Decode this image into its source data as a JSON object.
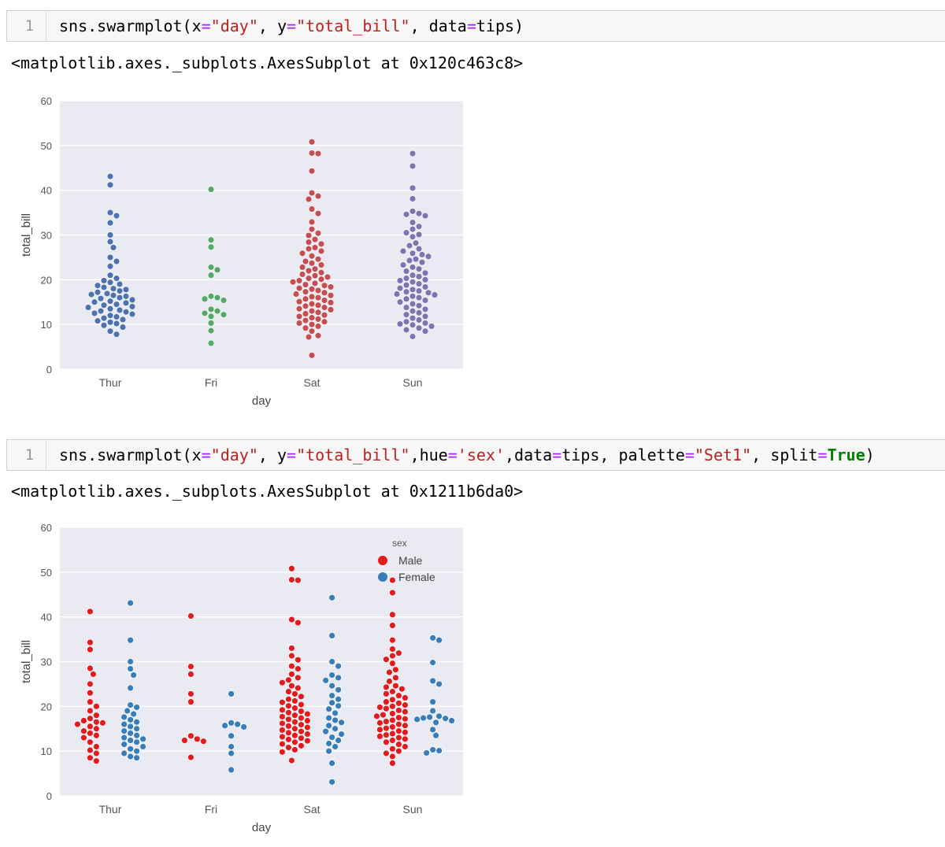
{
  "cells": [
    {
      "line_number": "1",
      "code_tokens": [
        {
          "t": "sns.swarmplot(x",
          "c": "plain"
        },
        {
          "t": "=",
          "c": "op"
        },
        {
          "t": "\"day\"",
          "c": "str"
        },
        {
          "t": ", y",
          "c": "plain"
        },
        {
          "t": "=",
          "c": "op"
        },
        {
          "t": "\"total_bill\"",
          "c": "str"
        },
        {
          "t": ", data",
          "c": "plain"
        },
        {
          "t": "=",
          "c": "op"
        },
        {
          "t": "tips)",
          "c": "plain"
        }
      ],
      "output_text": "<matplotlib.axes._subplots.AxesSubplot at 0x120c463c8>"
    },
    {
      "line_number": "1",
      "code_tokens": [
        {
          "t": "sns.swarmplot(x",
          "c": "plain"
        },
        {
          "t": "=",
          "c": "op"
        },
        {
          "t": "\"day\"",
          "c": "str"
        },
        {
          "t": ", y",
          "c": "plain"
        },
        {
          "t": "=",
          "c": "op"
        },
        {
          "t": "\"total_bill\"",
          "c": "str"
        },
        {
          "t": ",hue",
          "c": "plain"
        },
        {
          "t": "=",
          "c": "op"
        },
        {
          "t": "'sex'",
          "c": "str"
        },
        {
          "t": ",data",
          "c": "plain"
        },
        {
          "t": "=",
          "c": "op"
        },
        {
          "t": "tips, palette",
          "c": "plain"
        },
        {
          "t": "=",
          "c": "op"
        },
        {
          "t": "\"Set1\"",
          "c": "str"
        },
        {
          "t": ", split",
          "c": "plain"
        },
        {
          "t": "=",
          "c": "op"
        },
        {
          "t": "True",
          "c": "kw"
        },
        {
          "t": ")",
          "c": "plain"
        }
      ],
      "output_text": "<matplotlib.axes._subplots.AxesSubplot at 0x1211b6da0>"
    }
  ],
  "code_colors": {
    "plain": "#000000",
    "op": "#aa22ff",
    "str": "#ba2121",
    "kw": "#008000"
  },
  "chart_data": [
    {
      "type": "scatter",
      "subtype": "swarmplot",
      "title": "",
      "xlabel": "day",
      "ylabel": "total_bill",
      "ylim": [
        0,
        60
      ],
      "yticks": [
        "0",
        "10",
        "20",
        "30",
        "40",
        "50",
        "60"
      ],
      "categories": [
        "Thur",
        "Fri",
        "Sat",
        "Sun"
      ],
      "grid": true,
      "background": "#eaeaf2",
      "series": [
        {
          "name": "Thur",
          "color": "#4c72b0",
          "values": [
            43.1,
            41.2,
            35.0,
            34.3,
            32.7,
            30.0,
            28.5,
            27.2,
            25.0,
            24.1,
            23.0,
            21.0,
            20.3,
            19.8,
            19.4,
            19.0,
            18.7,
            18.3,
            18.0,
            17.8,
            17.5,
            17.2,
            16.9,
            16.7,
            16.5,
            16.3,
            16.0,
            15.8,
            15.5,
            15.2,
            15.0,
            14.8,
            14.5,
            14.3,
            14.0,
            13.8,
            13.5,
            13.2,
            13.0,
            12.8,
            12.5,
            12.3,
            12.0,
            11.7,
            11.4,
            11.1,
            10.8,
            10.5,
            10.2,
            9.8,
            9.4,
            8.5,
            7.8
          ]
        },
        {
          "name": "Fri",
          "color": "#55a868",
          "values": [
            40.2,
            28.9,
            27.3,
            22.8,
            22.2,
            21.0,
            16.3,
            16.0,
            15.7,
            15.4,
            13.4,
            13.0,
            12.5,
            12.2,
            11.8,
            10.3,
            8.6,
            5.8
          ]
        },
        {
          "name": "Sat",
          "color": "#c44e52",
          "values": [
            50.8,
            48.3,
            48.2,
            44.3,
            39.4,
            38.7,
            38.0,
            35.8,
            34.8,
            32.9,
            31.3,
            30.4,
            29.9,
            29.0,
            28.4,
            28.0,
            27.2,
            26.9,
            26.4,
            25.9,
            25.3,
            24.6,
            24.1,
            23.7,
            23.3,
            22.8,
            22.4,
            22.0,
            21.6,
            21.2,
            20.9,
            20.6,
            20.3,
            20.1,
            19.8,
            19.5,
            19.2,
            18.9,
            18.7,
            18.4,
            18.1,
            17.9,
            17.6,
            17.3,
            17.1,
            16.8,
            16.5,
            16.2,
            16.0,
            15.7,
            15.4,
            15.1,
            14.9,
            14.6,
            14.3,
            14.1,
            13.8,
            13.5,
            13.3,
            13.0,
            12.7,
            12.4,
            12.1,
            11.8,
            11.5,
            11.2,
            10.9,
            10.6,
            10.3,
            10.0,
            9.6,
            9.2,
            8.5,
            7.5,
            7.2,
            3.1
          ]
        },
        {
          "name": "Sun",
          "color": "#8172b2",
          "values": [
            48.2,
            45.4,
            40.5,
            38.1,
            35.3,
            34.8,
            34.6,
            34.3,
            32.8,
            31.9,
            31.3,
            30.5,
            30.1,
            29.6,
            28.2,
            27.6,
            26.9,
            26.4,
            25.9,
            25.6,
            25.2,
            24.6,
            24.3,
            23.9,
            23.3,
            22.8,
            22.4,
            21.9,
            21.5,
            21.0,
            20.7,
            20.3,
            20.0,
            19.8,
            19.5,
            19.1,
            18.8,
            18.4,
            18.1,
            17.8,
            17.5,
            17.3,
            17.1,
            16.8,
            16.6,
            16.3,
            16.0,
            15.7,
            15.4,
            15.0,
            14.6,
            14.2,
            13.8,
            13.4,
            13.0,
            12.6,
            12.2,
            11.8,
            11.4,
            11.0,
            10.6,
            10.3,
            10.1,
            9.9,
            9.6,
            9.2,
            8.8,
            8.5,
            7.3
          ]
        }
      ]
    },
    {
      "type": "scatter",
      "subtype": "swarmplot",
      "title": "",
      "xlabel": "day",
      "ylabel": "total_bill",
      "ylim": [
        0,
        60
      ],
      "yticks": [
        "0",
        "10",
        "20",
        "30",
        "40",
        "50",
        "60"
      ],
      "categories": [
        "Thur",
        "Fri",
        "Sat",
        "Sun"
      ],
      "grid": true,
      "background": "#eaeaf2",
      "legend": {
        "title": "sex",
        "placement": "top-right",
        "entries": [
          "Male",
          "Female"
        ]
      },
      "series": [
        {
          "name": "Male",
          "color": "#e41a1c",
          "values_by_category": [
            [
              41.2,
              34.3,
              32.7,
              28.5,
              27.2,
              25.0,
              23.0,
              21.0,
              20.0,
              19.0,
              18.0,
              17.3,
              16.8,
              16.5,
              16.3,
              16.0,
              15.5,
              15.0,
              14.5,
              14.0,
              13.5,
              13.0,
              12.0,
              11.0,
              10.2,
              9.5,
              8.5,
              7.8
            ],
            [
              40.2,
              28.9,
              27.2,
              22.8,
              21.0,
              13.4,
              12.7,
              12.4,
              12.2,
              8.6
            ],
            [
              50.8,
              48.3,
              48.2,
              39.4,
              38.7,
              33.0,
              31.3,
              30.4,
              29.0,
              28.4,
              27.2,
              26.4,
              25.9,
              25.3,
              24.6,
              24.1,
              23.3,
              22.8,
              22.2,
              21.6,
              21.2,
              20.9,
              20.4,
              20.1,
              19.6,
              19.2,
              18.9,
              18.6,
              18.3,
              18.0,
              17.7,
              17.4,
              17.1,
              16.8,
              16.5,
              16.2,
              15.9,
              15.6,
              15.3,
              15.0,
              14.7,
              14.4,
              14.1,
              13.8,
              13.5,
              13.2,
              12.9,
              12.6,
              12.3,
              12.0,
              11.6,
              11.2,
              10.8,
              10.3,
              9.8,
              7.9
            ],
            [
              48.2,
              45.4,
              40.5,
              38.1,
              34.8,
              32.8,
              31.9,
              31.3,
              30.5,
              29.6,
              28.2,
              27.6,
              26.4,
              25.6,
              24.6,
              24.3,
              23.9,
              23.3,
              22.8,
              22.4,
              21.9,
              21.5,
              21.0,
              20.7,
              20.3,
              20.0,
              19.8,
              19.5,
              19.1,
              18.8,
              18.4,
              18.1,
              17.8,
              17.5,
              17.2,
              16.9,
              16.6,
              16.3,
              16.0,
              15.7,
              15.4,
              15.1,
              14.8,
              14.5,
              14.2,
              13.9,
              13.6,
              13.3,
              13.0,
              12.7,
              12.4,
              12.0,
              11.5,
              11.0,
              10.5,
              10.0,
              9.5,
              8.8,
              7.3
            ]
          ]
        },
        {
          "name": "Female",
          "color": "#377eb8",
          "values_by_category": [
            [
              43.1,
              34.8,
              30.0,
              28.4,
              27.0,
              24.1,
              20.3,
              19.8,
              19.0,
              18.3,
              17.6,
              17.0,
              16.5,
              16.0,
              15.5,
              15.0,
              14.5,
              14.0,
              13.5,
              13.0,
              12.7,
              12.4,
              12.0,
              11.5,
              11.0,
              10.5,
              10.0,
              9.5,
              8.8,
              8.5
            ],
            [
              22.8,
              16.3,
              16.0,
              15.7,
              15.4,
              13.4,
              11.0,
              9.5,
              5.8
            ],
            [
              44.3,
              35.8,
              30.0,
              29.0,
              27.0,
              26.4,
              25.8,
              24.6,
              23.7,
              22.4,
              21.6,
              20.8,
              20.1,
              19.4,
              18.5,
              17.4,
              16.9,
              16.4,
              15.7,
              15.0,
              14.4,
              13.8,
              13.1,
              12.4,
              11.7,
              11.0,
              10.0,
              7.3,
              3.1
            ],
            [
              35.3,
              34.8,
              29.8,
              25.7,
              25.0,
              21.0,
              19.0,
              17.8,
              17.6,
              17.4,
              17.3,
              17.1,
              16.8,
              16.4,
              14.8,
              13.5,
              10.3,
              10.1,
              9.6
            ]
          ]
        }
      ]
    }
  ]
}
